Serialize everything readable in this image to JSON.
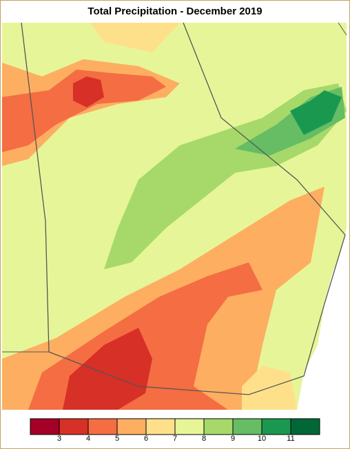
{
  "title": "Total Precipitation - December 2019",
  "legend": {
    "colors": [
      "#a50026",
      "#d73027",
      "#f46d43",
      "#fdae61",
      "#fee08b",
      "#e6f598",
      "#a6d96a",
      "#66bd63",
      "#1a9850",
      "#006837"
    ],
    "labels": [
      3,
      4,
      5,
      6,
      7,
      8,
      9,
      10,
      11
    ]
  }
}
